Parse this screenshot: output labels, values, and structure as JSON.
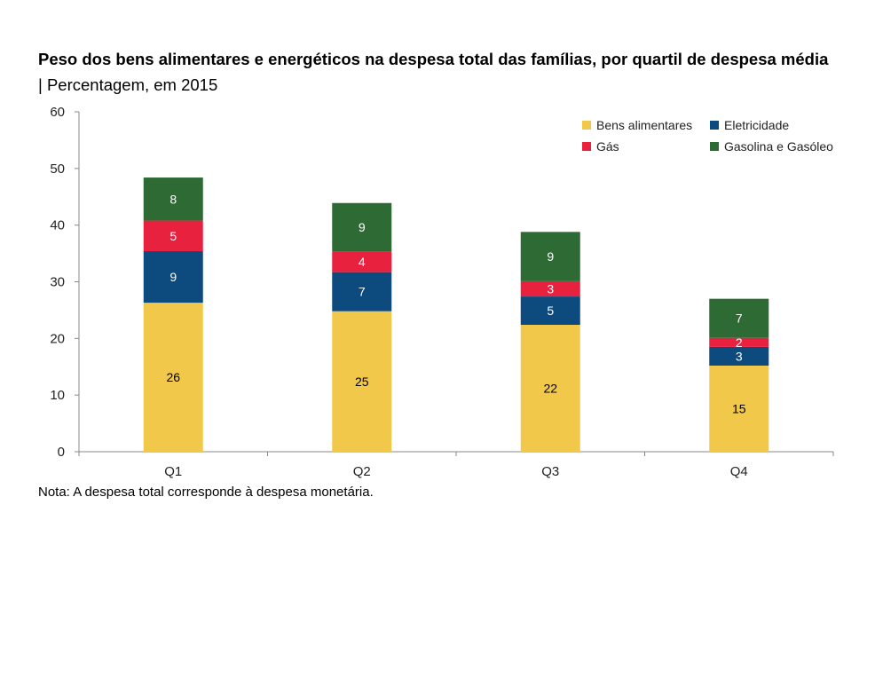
{
  "title": {
    "bold": "Peso dos bens alimentares e energéticos na despesa total das famílias, por quartil de despesa média",
    "separator": "|",
    "subtitle": "Percentagem, em 2015"
  },
  "note": "Nota: A despesa total corresponde à despesa monetária.",
  "chart_data": {
    "type": "bar",
    "stacked": true,
    "categories": [
      "Q1",
      "Q2",
      "Q3",
      "Q4"
    ],
    "series": [
      {
        "name": "Bens alimentares",
        "color": "#F2C84B",
        "values": [
          26.3,
          24.8,
          22.4,
          15.2
        ],
        "labels": [
          "26",
          "25",
          "22",
          "15"
        ]
      },
      {
        "name": "Eletricidade",
        "color": "#0D4A7E",
        "values": [
          9.1,
          6.9,
          5.0,
          3.3
        ],
        "labels": [
          "9",
          "7",
          "5",
          "3"
        ]
      },
      {
        "name": "Gás",
        "color": "#E8213F",
        "values": [
          5.4,
          3.6,
          2.7,
          1.6
        ],
        "labels": [
          "5",
          "4",
          "3",
          "2"
        ]
      },
      {
        "name": "Gasolina e Gasóleo",
        "color": "#2E6B34",
        "values": [
          7.6,
          8.6,
          8.7,
          6.9
        ],
        "labels": [
          "8",
          "9",
          "9",
          "7"
        ]
      }
    ],
    "ylim": [
      0,
      60
    ],
    "yticks": [
      "0",
      "10",
      "20",
      "30",
      "40",
      "50",
      "60"
    ],
    "xlabel": "",
    "ylabel": "",
    "grid": false,
    "legend_position": "top-right"
  }
}
